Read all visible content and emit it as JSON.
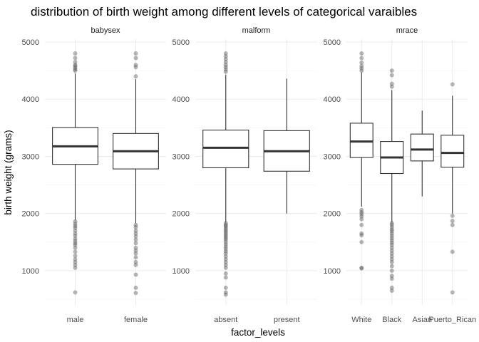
{
  "chart_data": {
    "type": "boxplot",
    "title": "distribution of birth weight among different levels of categorical varaibles",
    "xlabel": "factor_levels",
    "ylabel": "birth weight (grams)",
    "ylim": [
      400,
      5050
    ],
    "yticks": [
      1000,
      2000,
      3000,
      4000,
      5000
    ],
    "grid": true,
    "panels": [
      {
        "name": "babysex",
        "categories": [
          {
            "label": "male",
            "q1": 2860,
            "median": 3175,
            "q3": 3505,
            "whisker_low": 1880,
            "whisker_high": 4450,
            "outliers": [
              4800,
              4720,
              4650,
              4600,
              4580,
              4550,
              4520,
              4500,
              1860,
              1820,
              1780,
              1750,
              1700,
              1650,
              1610,
              1560,
              1520,
              1480,
              1450,
              1400,
              1330,
              1260,
              1200,
              1150,
              1100,
              1050,
              620
            ]
          },
          {
            "label": "female",
            "q1": 2780,
            "median": 3090,
            "q3": 3400,
            "whisker_low": 1830,
            "whisker_high": 4350,
            "outliers": [
              4800,
              4720,
              4600,
              4560,
              4400,
              1800,
              1760,
              1700,
              1650,
              1600,
              1540,
              1480,
              1400,
              1350,
              1300,
              1230,
              1150,
              1100,
              930,
              700,
              610
            ]
          }
        ]
      },
      {
        "name": "malform",
        "categories": [
          {
            "label": "absent",
            "q1": 2800,
            "median": 3150,
            "q3": 3460,
            "whisker_low": 1840,
            "whisker_high": 4430,
            "outliers": [
              4800,
              4750,
              4700,
              4650,
              4600,
              4560,
              4520,
              4480,
              1830,
              1800,
              1780,
              1750,
              1720,
              1690,
              1660,
              1630,
              1600,
              1570,
              1540,
              1500,
              1460,
              1420,
              1380,
              1340,
              1300,
              1250,
              1200,
              1150,
              1100,
              1050,
              950,
              880,
              700,
              620,
              580
            ]
          },
          {
            "label": "present",
            "q1": 2740,
            "median": 3090,
            "q3": 3450,
            "whisker_low": 2000,
            "whisker_high": 4360,
            "outliers": []
          }
        ]
      },
      {
        "name": "mrace",
        "categories": [
          {
            "label": "White",
            "q1": 2980,
            "median": 3260,
            "q3": 3580,
            "whisker_low": 2120,
            "whisker_high": 4470,
            "outliers": [
              4800,
              4720,
              4640,
              4580,
              4540,
              4500,
              2060,
              2020,
              1990,
              1950,
              1900,
              1800,
              1650,
              1620,
              1500,
              1050,
              1040
            ]
          },
          {
            "label": "Black",
            "q1": 2700,
            "median": 2980,
            "q3": 3260,
            "whisker_low": 1840,
            "whisker_high": 4160,
            "outliers": [
              4500,
              4420,
              4270,
              4220,
              1830,
              1800,
              1760,
              1720,
              1690,
              1650,
              1610,
              1570,
              1530,
              1490,
              1450,
              1400,
              1350,
              1300,
              1250,
              1200,
              1150,
              1080,
              1000,
              910,
              860,
              700,
              650
            ]
          },
          {
            "label": "Asian",
            "q1": 2920,
            "median": 3120,
            "q3": 3390,
            "whisker_low": 2300,
            "whisker_high": 3800,
            "outliers": []
          },
          {
            "label": "Puerto_Rican",
            "q1": 2810,
            "median": 3060,
            "q3": 3370,
            "whisker_low": 2000,
            "whisker_high": 4060,
            "outliers": [
              4260,
              1960,
              1870,
              1800,
              1330,
              620
            ]
          }
        ]
      }
    ]
  }
}
